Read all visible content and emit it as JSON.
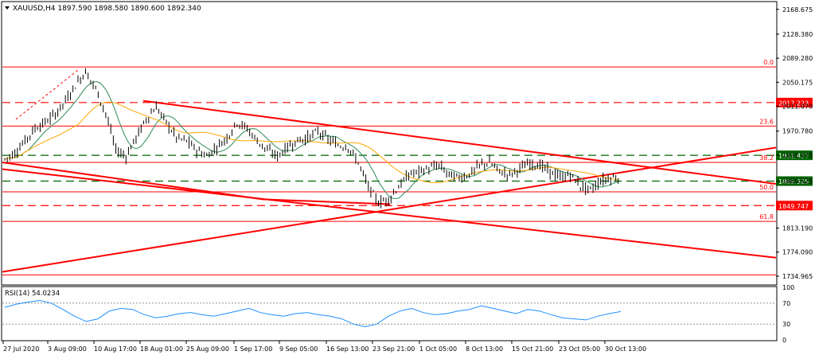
{
  "header": {
    "symbol_title": "XAUUSD,H4  1897.590 1898.580 1890.600 1892.340"
  },
  "rsi_panel": {
    "title": "RSI(14) 54.0234",
    "levels": [
      "100",
      "70",
      "30",
      "0"
    ]
  },
  "colors": {
    "frame": "#000000",
    "candles": "#000000",
    "fib": "#ff0000",
    "trend": "#ff0000",
    "support_resistance_green": "#006400",
    "ma_fast": "#2e8b57",
    "ma_slow": "#ffa500",
    "rsi": "#1e90ff",
    "label_bg_red": "#ff0000",
    "label_bg_green": "#006400"
  },
  "chart_data": {
    "type": "candlestick",
    "symbol": "XAUUSD",
    "timeframe": "H4",
    "ohlc_last": {
      "open": 1897.59,
      "high": 1898.58,
      "low": 1890.6,
      "close": 1892.34
    },
    "y_ticks": [
      "2168.675",
      "2128.380",
      "2089.280",
      "2050.175",
      "2011.070",
      "1970.780",
      "1931.675",
      "1889.525",
      "1813.190",
      "1774.090",
      "1734.965"
    ],
    "x_ticks": [
      "27 Jul 2020",
      "3 Aug 09:00",
      "10 Aug 17:00",
      "18 Aug 01:00",
      "25 Aug 09:00",
      "1 Sep 17:00",
      "9 Sep 05:00",
      "16 Sep 13:00",
      "23 Sep 21:00",
      "1 Oct 05:00",
      "8 Oct 13:00",
      "15 Oct 21:00",
      "23 Oct 05:00",
      "30 Oct 13:00"
    ],
    "fib_levels": [
      {
        "label": "0.0",
        "price": 2075.0
      },
      {
        "label": "23.6",
        "price": 1979.0
      },
      {
        "label": "38.2",
        "price": 1920.0
      },
      {
        "label": "50.0",
        "price": 1872.0
      },
      {
        "label": "61.8",
        "price": 1824.0
      },
      {
        "label": "",
        "price": 1737.0
      }
    ],
    "horizontal_levels": [
      {
        "label": "2017.223",
        "price": 2017.223,
        "style": "red-dashed"
      },
      {
        "label": "1931.457",
        "price": 1931.457,
        "style": "green-dashed"
      },
      {
        "label": "1889.525",
        "price": 1889.525,
        "style": "green-dashed"
      },
      {
        "label": "1849.747",
        "price": 1849.747,
        "style": "red-dashed"
      }
    ],
    "price_path": [
      1925,
      1935,
      1955,
      1975,
      1985,
      1998,
      2020,
      2045,
      2068,
      2040,
      2000,
      1940,
      1930,
      1960,
      1990,
      2010,
      1985,
      1960,
      1955,
      1940,
      1930,
      1945,
      1960,
      1985,
      1975,
      1955,
      1940,
      1930,
      1945,
      1955,
      1960,
      1970,
      1958,
      1948,
      1945,
      1920,
      1880,
      1855,
      1860,
      1880,
      1900,
      1905,
      1910,
      1915,
      1900,
      1895,
      1900,
      1915,
      1920,
      1905,
      1900,
      1910,
      1918,
      1915,
      1905,
      1895,
      1900,
      1882,
      1875,
      1890,
      1895
    ],
    "rsi": {
      "period": 14,
      "value": 54.0234,
      "levels": [
        70,
        30
      ],
      "values": [
        62,
        68,
        72,
        75,
        70,
        58,
        45,
        35,
        40,
        55,
        60,
        58,
        48,
        42,
        45,
        50,
        52,
        48,
        45,
        50,
        55,
        60,
        52,
        48,
        45,
        50,
        52,
        48,
        45,
        40,
        30,
        25,
        30,
        45,
        55,
        60,
        52,
        48,
        50,
        55,
        58,
        65,
        60,
        55,
        50,
        58,
        55,
        48,
        42,
        40,
        38,
        45,
        50,
        54
      ]
    }
  }
}
